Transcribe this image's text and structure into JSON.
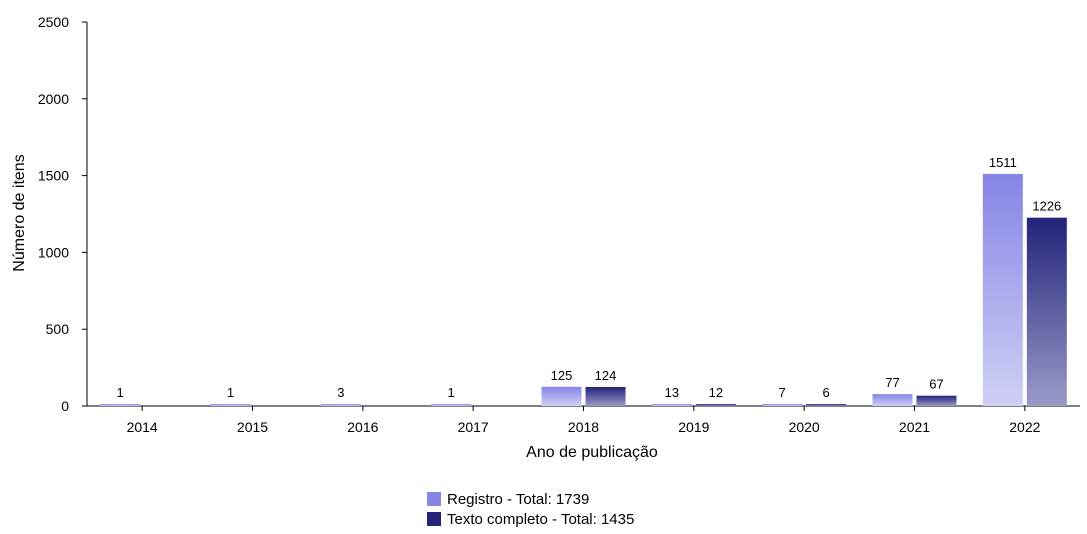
{
  "chart_data": {
    "type": "bar",
    "categories": [
      "2014",
      "2015",
      "2016",
      "2017",
      "2018",
      "2019",
      "2020",
      "2021",
      "2022"
    ],
    "series": [
      {
        "name": "Registro - Total: 1739",
        "values": [
          1,
          1,
          3,
          1,
          125,
          13,
          7,
          77,
          1511
        ],
        "color": "#8585e6"
      },
      {
        "name": "Texto completo - Total: 1435",
        "values": [
          0,
          0,
          0,
          0,
          124,
          12,
          6,
          67,
          1226
        ],
        "color": "#23237a"
      }
    ],
    "data_labels": [
      [
        "1",
        "1",
        "3",
        "1",
        "125",
        "13",
        "7",
        "77",
        "1511"
      ],
      [
        "",
        "",
        "",
        "",
        "124",
        "12",
        "6",
        "67",
        "1226"
      ]
    ],
    "xlabel": "Ano de publicação",
    "ylabel": "Número de itens",
    "ylim": [
      0,
      2500
    ],
    "yticks": [
      "0",
      "500",
      "1000",
      "1500",
      "2000",
      "2500"
    ],
    "grid": false,
    "legend_position": "bottom-center"
  }
}
